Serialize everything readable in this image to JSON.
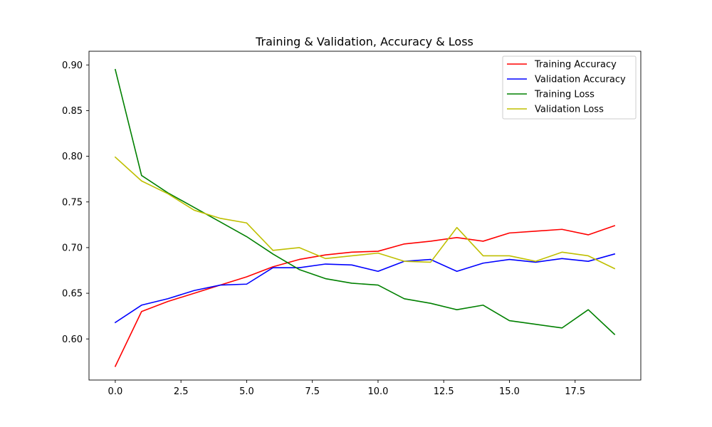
{
  "chart_data": {
    "type": "line",
    "title": "Training & Validation, Accuracy & Loss",
    "xlabel": "",
    "ylabel": "",
    "xlim": [
      -1,
      20
    ],
    "ylim": [
      0.555,
      0.915
    ],
    "x": [
      0,
      1,
      2,
      3,
      4,
      5,
      6,
      7,
      8,
      9,
      10,
      11,
      12,
      13,
      14,
      15,
      16,
      17,
      18,
      19
    ],
    "x_ticks": [
      0.0,
      2.5,
      5.0,
      7.5,
      10.0,
      12.5,
      15.0,
      17.5
    ],
    "x_tick_labels": [
      "0.0",
      "2.5",
      "5.0",
      "7.5",
      "10.0",
      "12.5",
      "15.0",
      "17.5"
    ],
    "y_ticks": [
      0.6,
      0.65,
      0.7,
      0.75,
      0.8,
      0.85,
      0.9
    ],
    "y_tick_labels": [
      "0.60",
      "0.65",
      "0.70",
      "0.75",
      "0.80",
      "0.85",
      "0.90"
    ],
    "grid": false,
    "legend_position": "top-right",
    "series": [
      {
        "name": "Training Accuracy",
        "color": "#ff0000",
        "values": [
          0.57,
          0.63,
          0.641,
          0.65,
          0.659,
          0.668,
          0.679,
          0.687,
          0.692,
          0.695,
          0.696,
          0.704,
          0.707,
          0.711,
          0.707,
          0.716,
          0.718,
          0.72,
          0.714,
          0.724
        ]
      },
      {
        "name": "Validation Accuracy",
        "color": "#0000ff",
        "values": [
          0.618,
          0.637,
          0.644,
          0.653,
          0.659,
          0.66,
          0.678,
          0.678,
          0.682,
          0.681,
          0.674,
          0.685,
          0.687,
          0.674,
          0.683,
          0.687,
          0.684,
          0.688,
          0.685,
          0.693
        ]
      },
      {
        "name": "Training Loss",
        "color": "#008000",
        "values": [
          0.895,
          0.779,
          0.76,
          0.744,
          0.728,
          0.712,
          0.693,
          0.676,
          0.666,
          0.661,
          0.659,
          0.644,
          0.639,
          0.632,
          0.637,
          0.62,
          0.616,
          0.612,
          0.632,
          0.605
        ]
      },
      {
        "name": "Validation Loss",
        "color": "#bfbf00",
        "values": [
          0.799,
          0.773,
          0.759,
          0.741,
          0.732,
          0.727,
          0.697,
          0.7,
          0.688,
          0.691,
          0.694,
          0.685,
          0.684,
          0.722,
          0.691,
          0.691,
          0.685,
          0.695,
          0.691,
          0.677
        ]
      }
    ]
  }
}
